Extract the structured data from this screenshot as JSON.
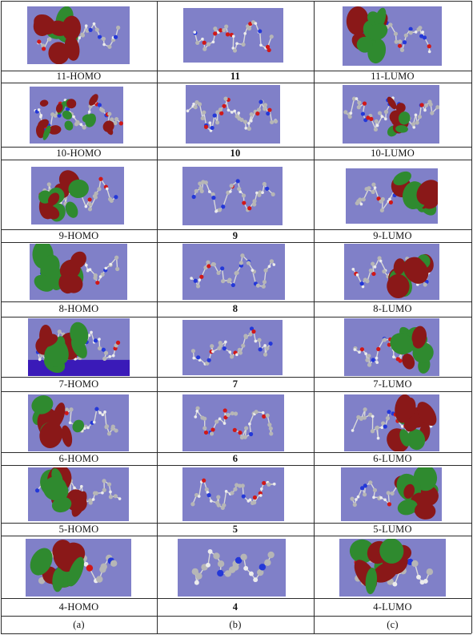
{
  "colors": {
    "panel": "#8080c8",
    "floor": "#3a1ab8",
    "lobe_positive": "#2f8a2f",
    "lobe_negative": "#8a1818",
    "carbon": "#b6b6b6",
    "hydrogen": "#ececec",
    "nitrogen": "#2438d8",
    "oxygen": "#d01818"
  },
  "rows": [
    {
      "labels": [
        "11-HOMO",
        "11",
        "11-LUMO"
      ]
    },
    {
      "labels": [
        "10-HOMO",
        "10",
        "10-LUMO"
      ]
    },
    {
      "labels": [
        "9-HOMO",
        "9",
        "9-LUMO"
      ]
    },
    {
      "labels": [
        "8-HOMO",
        "8",
        "8-LUMO"
      ]
    },
    {
      "labels": [
        "7-HOMO",
        "7",
        "7-LUMO"
      ]
    },
    {
      "labels": [
        "6-HOMO",
        "6",
        "6-LUMO"
      ]
    },
    {
      "labels": [
        "5-HOMO",
        "5",
        "5-LUMO"
      ]
    },
    {
      "labels": [
        "4-HOMO",
        "4",
        "4-LUMO"
      ]
    }
  ],
  "columns": [
    "(a)",
    "(b)",
    "(c)"
  ]
}
